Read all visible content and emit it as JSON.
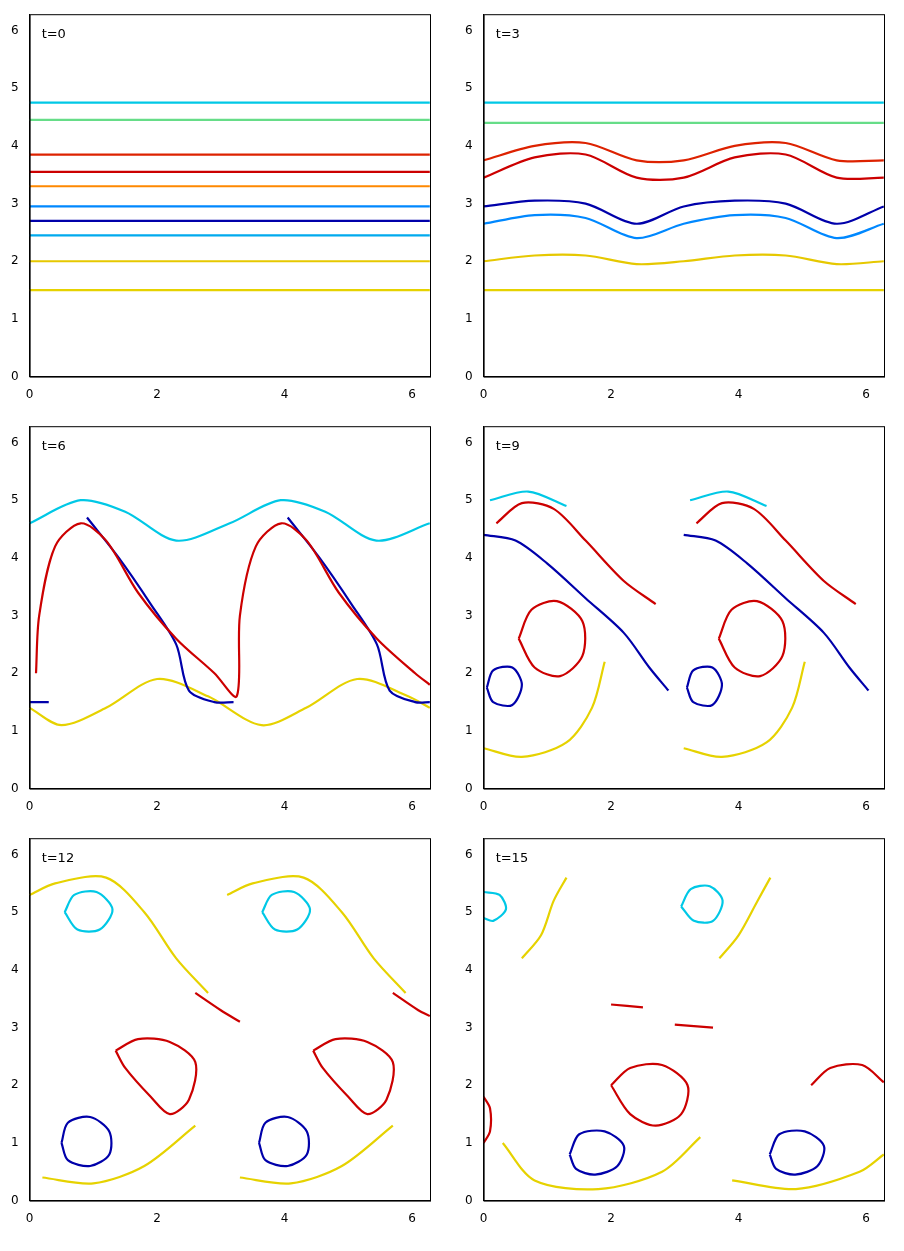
{
  "chart_data": [
    {
      "type": "line",
      "annotation": "t=0",
      "xlim": [
        0,
        6.2832
      ],
      "ylim": [
        0,
        6.2832
      ],
      "xticks": [
        0,
        2,
        4,
        6
      ],
      "yticks": [
        0,
        1,
        2,
        3,
        4,
        5,
        6
      ],
      "grid": false,
      "series": [
        {
          "color": "#00c8e6",
          "x": [
            0,
            6.28
          ],
          "values": [
            4.75,
            4.75
          ]
        },
        {
          "color": "#66dd88",
          "x": [
            0,
            6.28
          ],
          "values": [
            4.45,
            4.45
          ]
        },
        {
          "color": "#dd2200",
          "x": [
            0,
            6.28
          ],
          "values": [
            3.85,
            3.85
          ]
        },
        {
          "color": "#cc0000",
          "x": [
            0,
            6.28
          ],
          "values": [
            3.55,
            3.55
          ]
        },
        {
          "color": "#ff8800",
          "x": [
            0,
            6.28
          ],
          "values": [
            3.3,
            3.3
          ]
        },
        {
          "color": "#0088ff",
          "x": [
            0,
            6.28
          ],
          "values": [
            2.95,
            2.95
          ]
        },
        {
          "color": "#0000aa",
          "x": [
            0,
            6.28
          ],
          "values": [
            2.7,
            2.7
          ]
        },
        {
          "color": "#00aaee",
          "x": [
            0,
            6.28
          ],
          "values": [
            2.45,
            2.45
          ]
        },
        {
          "color": "#e6c800",
          "x": [
            0,
            6.28
          ],
          "values": [
            2.0,
            2.0
          ]
        },
        {
          "color": "#e6d200",
          "x": [
            0,
            6.28
          ],
          "values": [
            1.5,
            1.5
          ]
        }
      ]
    },
    {
      "type": "line",
      "annotation": "t=3",
      "xlim": [
        0,
        6.2832
      ],
      "ylim": [
        0,
        6.2832
      ],
      "xticks": [
        0,
        2,
        4,
        6
      ],
      "yticks": [
        0,
        1,
        2,
        3,
        4,
        5,
        6
      ],
      "grid": false,
      "series": [
        {
          "color": "#00c8e6",
          "x": [
            0,
            6.28
          ],
          "values": [
            4.75,
            4.75
          ]
        },
        {
          "color": "#66dd88",
          "x": [
            0,
            6.28
          ],
          "values": [
            4.4,
            4.4
          ]
        },
        {
          "color": "#dd2200",
          "x": [
            0,
            0.8,
            1.6,
            2.4,
            3.14,
            3.94,
            4.74,
            5.54,
            6.28
          ],
          "values": [
            3.75,
            4.0,
            4.05,
            3.75,
            3.75,
            4.0,
            4.05,
            3.75,
            3.75
          ]
        },
        {
          "color": "#cc0000",
          "x": [
            0,
            0.8,
            1.6,
            2.4,
            3.14,
            3.94,
            4.74,
            5.54,
            6.28
          ],
          "values": [
            3.45,
            3.8,
            3.85,
            3.45,
            3.45,
            3.8,
            3.85,
            3.45,
            3.45
          ]
        },
        {
          "color": "#0000aa",
          "x": [
            0,
            0.8,
            1.6,
            2.4,
            3.14,
            3.94,
            4.74,
            5.54,
            6.28
          ],
          "values": [
            2.95,
            3.05,
            3.0,
            2.65,
            2.95,
            3.05,
            3.0,
            2.65,
            2.95
          ]
        },
        {
          "color": "#0088ff",
          "x": [
            0,
            0.8,
            1.6,
            2.4,
            3.14,
            3.94,
            4.74,
            5.54,
            6.28
          ],
          "values": [
            2.65,
            2.8,
            2.75,
            2.4,
            2.65,
            2.8,
            2.75,
            2.4,
            2.65
          ]
        },
        {
          "color": "#e6c800",
          "x": [
            0,
            0.8,
            1.6,
            2.4,
            3.14,
            3.94,
            4.74,
            5.54,
            6.28
          ],
          "values": [
            2.0,
            2.1,
            2.1,
            1.95,
            2.0,
            2.1,
            2.1,
            1.95,
            2.0
          ]
        },
        {
          "color": "#e6d200",
          "x": [
            0,
            6.28
          ],
          "values": [
            1.5,
            1.5
          ]
        }
      ]
    },
    {
      "type": "line",
      "annotation": "t=6",
      "xlim": [
        0,
        6.2832
      ],
      "ylim": [
        0,
        6.2832
      ],
      "xticks": [
        0,
        2,
        4,
        6
      ],
      "yticks": [
        0,
        1,
        2,
        3,
        4,
        5,
        6
      ],
      "grid": false,
      "series": [
        {
          "color": "#00c8e6",
          "x": [
            0,
            0.8,
            1.5,
            2.3,
            3.14,
            3.94,
            4.64,
            5.44,
            6.28
          ],
          "values": [
            4.6,
            5.0,
            4.8,
            4.3,
            4.6,
            5.0,
            4.8,
            4.3,
            4.6
          ]
        },
        {
          "color": "#cc0000",
          "x": [
            0.1,
            0.15,
            0.4,
            0.8,
            1.2,
            1.7,
            2.3,
            2.9,
            3.25,
            3.3,
            3.55,
            3.95,
            4.35,
            4.85,
            5.45,
            6.05,
            6.28
          ],
          "values": [
            2.0,
            3.0,
            4.2,
            4.6,
            4.3,
            3.4,
            2.6,
            2.0,
            1.6,
            3.0,
            4.2,
            4.6,
            4.3,
            3.4,
            2.6,
            2.0,
            1.8
          ]
        },
        {
          "color": "#0000aa",
          "x": [
            0,
            0.3,
            null,
            0.9,
            1.4,
            1.9,
            2.3,
            2.5,
            2.9,
            3.2,
            null,
            4.05,
            4.55,
            5.05,
            5.45,
            5.65,
            6.05,
            6.28
          ],
          "values": [
            1.5,
            1.5,
            null,
            4.7,
            4.0,
            3.2,
            2.5,
            1.7,
            1.5,
            1.5,
            null,
            4.7,
            4.0,
            3.2,
            2.5,
            1.7,
            1.5,
            1.5
          ]
        },
        {
          "color": "#e6d200",
          "x": [
            0,
            0.5,
            1.2,
            2.0,
            2.8,
            3.64,
            4.34,
            5.14,
            5.94,
            6.28
          ],
          "values": [
            1.4,
            1.1,
            1.4,
            1.9,
            1.6,
            1.1,
            1.4,
            1.9,
            1.6,
            1.4
          ]
        }
      ]
    },
    {
      "type": "line",
      "annotation": "t=9",
      "xlim": [
        0,
        6.2832
      ],
      "ylim": [
        0,
        6.2832
      ],
      "xticks": [
        0,
        2,
        4,
        6
      ],
      "yticks": [
        0,
        1,
        2,
        3,
        4,
        5,
        6
      ],
      "grid": false,
      "series": [
        {
          "color": "#00c8e6",
          "x": [
            0.1,
            0.7,
            1.3,
            null,
            3.24,
            3.84,
            4.44
          ],
          "values": [
            5.0,
            5.15,
            4.9,
            null,
            5.0,
            5.15,
            4.9
          ]
        },
        {
          "color": "#cc0000",
          "x": [
            0.55,
            0.75,
            1.15,
            1.55,
            1.55,
            1.2,
            0.8,
            0.55,
            null,
            0.2,
            0.6,
            1.1,
            1.6,
            2.2,
            2.7,
            null,
            3.69,
            3.89,
            4.29,
            4.69,
            4.69,
            4.34,
            3.94,
            3.69,
            null,
            3.34,
            3.74,
            4.24,
            4.74,
            5.34,
            5.84
          ],
          "values": [
            2.6,
            3.1,
            3.25,
            2.9,
            2.3,
            1.95,
            2.1,
            2.6,
            null,
            4.6,
            4.95,
            4.85,
            4.3,
            3.6,
            3.2,
            null,
            2.6,
            3.1,
            3.25,
            2.9,
            2.3,
            1.95,
            2.1,
            2.6,
            null,
            4.6,
            4.95,
            4.85,
            4.3,
            3.6,
            3.2
          ]
        },
        {
          "color": "#0000aa",
          "x": [
            0.05,
            0.15,
            0.45,
            0.6,
            0.45,
            0.15,
            0.05,
            null,
            0.0,
            0.5,
            1.0,
            1.6,
            2.2,
            2.6,
            2.9,
            null,
            3.19,
            3.29,
            3.59,
            3.74,
            3.59,
            3.29,
            3.19,
            null,
            3.14,
            3.64,
            4.14,
            4.74,
            5.34,
            5.74,
            6.04
          ],
          "values": [
            1.75,
            2.05,
            2.1,
            1.8,
            1.45,
            1.5,
            1.75,
            null,
            4.4,
            4.3,
            3.9,
            3.3,
            2.7,
            2.1,
            1.7,
            null,
            1.75,
            2.05,
            2.1,
            1.8,
            1.45,
            1.5,
            1.75,
            null,
            4.4,
            4.3,
            3.9,
            3.3,
            2.7,
            2.1,
            1.7
          ]
        },
        {
          "color": "#e6d200",
          "x": [
            0.0,
            0.6,
            1.3,
            1.7,
            1.9,
            null,
            3.14,
            3.74,
            4.44,
            4.84,
            5.04
          ],
          "values": [
            0.7,
            0.55,
            0.8,
            1.4,
            2.2,
            null,
            0.7,
            0.55,
            0.8,
            1.4,
            2.2
          ]
        }
      ]
    },
    {
      "type": "line",
      "annotation": "t=12",
      "xlim": [
        0,
        6.2832
      ],
      "ylim": [
        0,
        6.2832
      ],
      "xticks": [
        0,
        2,
        4,
        6
      ],
      "yticks": [
        0,
        1,
        2,
        3,
        4,
        5,
        6
      ],
      "grid": false,
      "series": [
        {
          "color": "#e6d200",
          "x": [
            0.0,
            0.4,
            1.2,
            1.8,
            2.3,
            2.8,
            null,
            3.1,
            3.5,
            4.3,
            4.9,
            5.4,
            5.9,
            null,
            0.2,
            1.0,
            1.8,
            2.6,
            null,
            3.3,
            4.1,
            4.9,
            5.7
          ],
          "values": [
            5.3,
            5.5,
            5.6,
            5.0,
            4.2,
            3.6,
            null,
            5.3,
            5.5,
            5.6,
            5.0,
            4.2,
            3.6,
            null,
            0.4,
            0.3,
            0.6,
            1.3,
            null,
            0.4,
            0.3,
            0.6,
            1.3
          ]
        },
        {
          "color": "#00c8e6",
          "x": [
            0.55,
            0.7,
            1.05,
            1.3,
            1.1,
            0.75,
            0.55,
            null,
            3.65,
            3.8,
            4.15,
            4.4,
            4.2,
            3.85,
            3.65
          ],
          "values": [
            5.0,
            5.3,
            5.35,
            5.05,
            4.7,
            4.7,
            5.0,
            null,
            5.0,
            5.3,
            5.35,
            5.05,
            4.7,
            4.7,
            5.0
          ]
        },
        {
          "color": "#cc0000",
          "x": [
            1.35,
            1.7,
            2.2,
            2.6,
            2.5,
            2.2,
            1.9,
            1.5,
            1.35,
            null,
            4.45,
            4.8,
            5.3,
            5.7,
            5.6,
            5.3,
            5.0,
            4.6,
            4.45,
            null,
            2.6,
            3.0,
            3.3,
            null,
            5.7,
            6.1,
            6.28
          ],
          "values": [
            2.6,
            2.8,
            2.75,
            2.4,
            1.75,
            1.5,
            1.8,
            2.3,
            2.6,
            null,
            2.6,
            2.8,
            2.75,
            2.4,
            1.75,
            1.5,
            1.8,
            2.3,
            2.6,
            null,
            3.6,
            3.3,
            3.1,
            null,
            3.6,
            3.3,
            3.2
          ]
        },
        {
          "color": "#0000aa",
          "x": [
            0.5,
            0.6,
            0.95,
            1.25,
            1.25,
            0.95,
            0.6,
            0.5,
            null,
            3.6,
            3.7,
            4.05,
            4.35,
            4.35,
            4.05,
            3.7,
            3.6
          ],
          "values": [
            1.0,
            1.35,
            1.45,
            1.2,
            0.8,
            0.6,
            0.7,
            1.0,
            null,
            1.0,
            1.35,
            1.45,
            1.2,
            0.8,
            0.6,
            0.7,
            1.0
          ]
        }
      ]
    },
    {
      "type": "line",
      "annotation": "t=15",
      "xlim": [
        0,
        6.2832
      ],
      "ylim": [
        0,
        6.2832
      ],
      "xticks": [
        0,
        2,
        4,
        6
      ],
      "yticks": [
        0,
        1,
        2,
        3,
        4,
        5,
        6
      ],
      "grid": false,
      "series": [
        {
          "color": "#e6d200",
          "x": [
            0.6,
            0.9,
            1.1,
            1.3,
            null,
            3.7,
            4.0,
            4.3,
            4.5,
            null,
            0.3,
            0.8,
            1.8,
            2.8,
            3.4,
            null,
            3.9,
            4.9,
            5.9,
            6.28
          ],
          "values": [
            4.2,
            4.6,
            5.2,
            5.6,
            null,
            4.2,
            4.6,
            5.2,
            5.6,
            null,
            1.0,
            0.35,
            0.2,
            0.5,
            1.1,
            null,
            0.35,
            0.2,
            0.5,
            0.8
          ]
        },
        {
          "color": "#00c8e6",
          "x": [
            3.1,
            3.25,
            3.55,
            3.75,
            3.6,
            3.3,
            3.1,
            null,
            0.0,
            0.25,
            0.35,
            0.15,
            0.0
          ],
          "values": [
            5.1,
            5.4,
            5.45,
            5.2,
            4.85,
            4.85,
            5.1,
            null,
            5.35,
            5.3,
            5.05,
            4.85,
            4.9
          ]
        },
        {
          "color": "#cc0000",
          "x": [
            2.0,
            2.3,
            2.8,
            3.2,
            3.1,
            2.7,
            2.3,
            2.0,
            null,
            5.14,
            5.44,
            5.94,
            6.28,
            null,
            0.0,
            0.1,
            0.1,
            0.0,
            null,
            2.0,
            2.5,
            null,
            3.0,
            3.6
          ],
          "values": [
            2.0,
            2.3,
            2.35,
            2.0,
            1.5,
            1.3,
            1.5,
            2.0,
            null,
            2.0,
            2.3,
            2.35,
            2.05,
            null,
            1.8,
            1.6,
            1.2,
            1.0,
            null,
            3.4,
            3.35,
            null,
            3.05,
            3.0
          ]
        },
        {
          "color": "#0000aa",
          "x": [
            1.35,
            1.5,
            1.9,
            2.2,
            2.1,
            1.75,
            1.45,
            1.35,
            null,
            4.49,
            4.64,
            5.04,
            5.34,
            5.24,
            4.89,
            4.59,
            4.49
          ],
          "values": [
            0.8,
            1.15,
            1.2,
            0.95,
            0.6,
            0.45,
            0.55,
            0.8,
            null,
            0.8,
            1.15,
            1.2,
            0.95,
            0.6,
            0.45,
            0.55,
            0.8
          ]
        }
      ]
    }
  ]
}
